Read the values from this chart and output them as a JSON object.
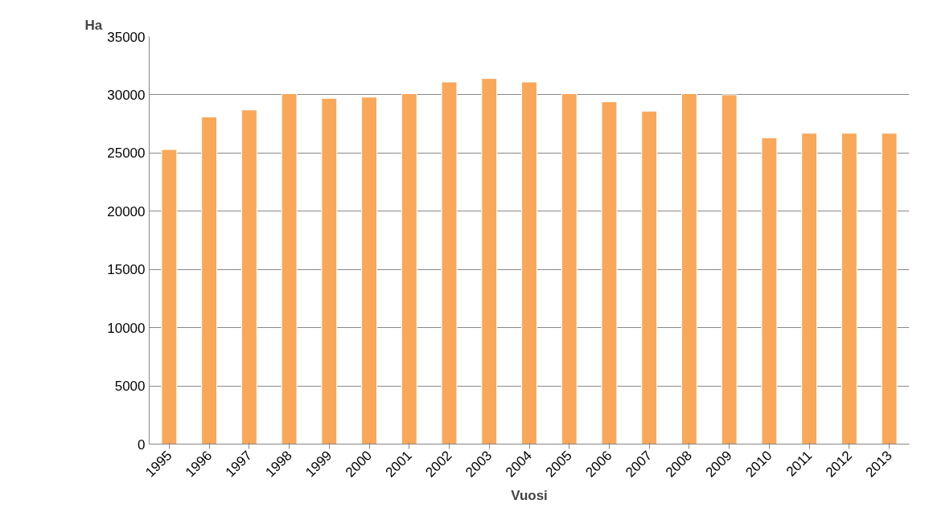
{
  "chart_data": {
    "type": "bar",
    "xlabel": "Vuosi",
    "ylabel": "Ha",
    "categories": [
      "1995",
      "1996",
      "1997",
      "1998",
      "1999",
      "2000",
      "2001",
      "2002",
      "2003",
      "2004",
      "2005",
      "2006",
      "2007",
      "2008",
      "2009",
      "2010",
      "2011",
      "2012",
      "2013"
    ],
    "values": [
      25300,
      28100,
      28700,
      30100,
      29700,
      29800,
      30100,
      31100,
      31400,
      31100,
      30100,
      29400,
      28600,
      30100,
      30000,
      26300,
      26700,
      26700,
      26700
    ],
    "color": "#f9a85a",
    "ylim": [
      0,
      35000
    ],
    "yticks": [
      0,
      5000,
      10000,
      15000,
      20000,
      25000,
      30000,
      35000
    ],
    "grid": "y"
  }
}
